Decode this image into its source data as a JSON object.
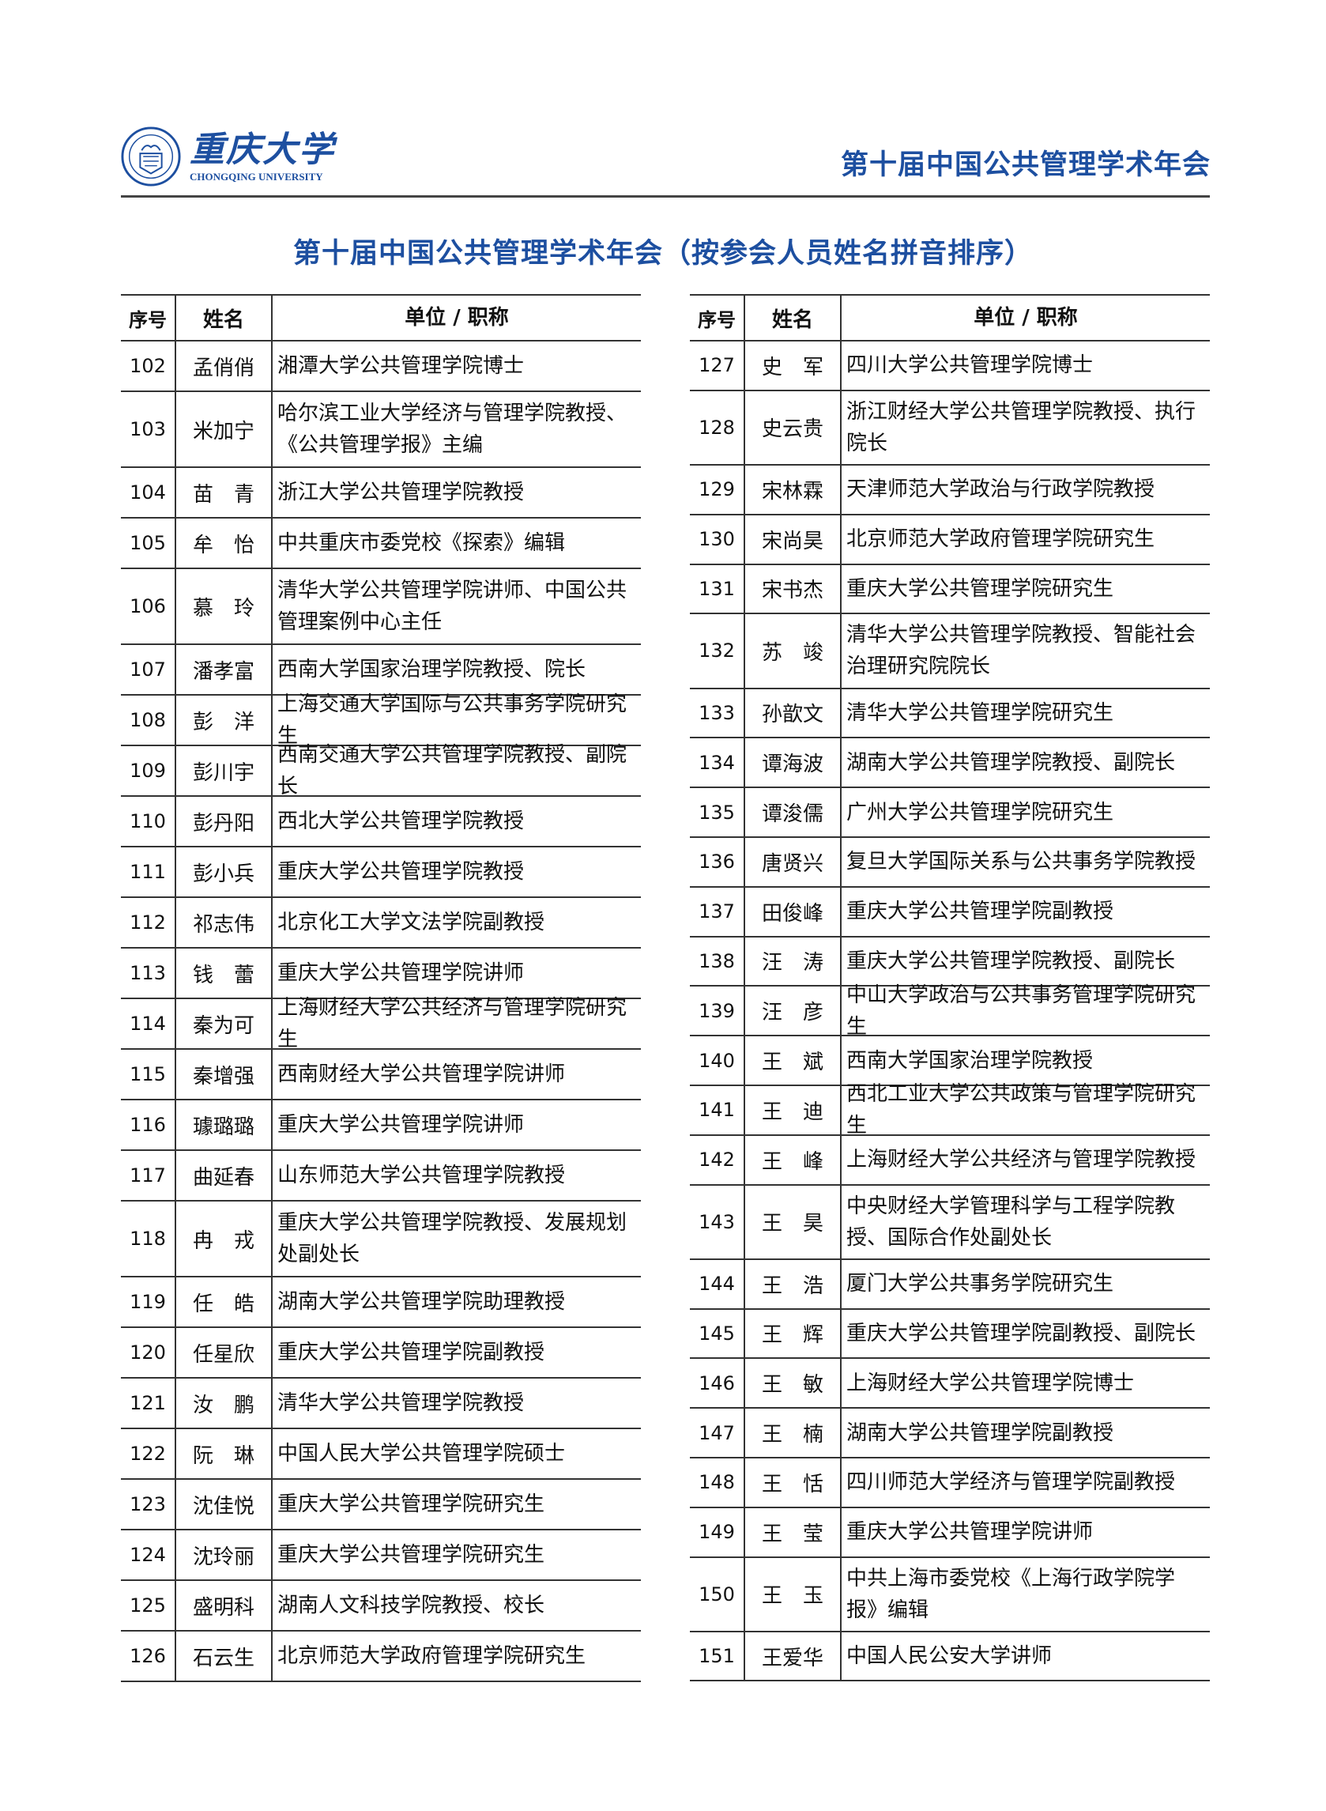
{
  "logo": {
    "cn": "重庆大学",
    "en": "CHONGQING UNIVERSITY"
  },
  "header_title": "第十届中国公共管理学术年会",
  "page_title": "第十届中国公共管理学术年会（按参会人员姓名拼音排序）",
  "columns": [
    "序号",
    "姓名",
    "单位 / 职称"
  ],
  "colors": {
    "title": "#1d4fa0",
    "rule": "#333333"
  },
  "left_rows": [
    [
      "102",
      "孟俏俏",
      "湘潭大学公共管理学院博士"
    ],
    [
      "103",
      "米加宁",
      "哈尔滨工业大学经济与管理学院教授、《公共管理学报》主编"
    ],
    [
      "104",
      "苗　青",
      "浙江大学公共管理学院教授"
    ],
    [
      "105",
      "牟　怡",
      "中共重庆市委党校《探索》编辑"
    ],
    [
      "106",
      "慕　玲",
      "清华大学公共管理学院讲师、中国公共管理案例中心主任"
    ],
    [
      "107",
      "潘孝富",
      "西南大学国家治理学院教授、院长"
    ],
    [
      "108",
      "彭　洋",
      "上海交通大学国际与公共事务学院研究生"
    ],
    [
      "109",
      "彭川宇",
      "西南交通大学公共管理学院教授、副院长"
    ],
    [
      "110",
      "彭丹阳",
      "西北大学公共管理学院教授"
    ],
    [
      "111",
      "彭小兵",
      "重庆大学公共管理学院教授"
    ],
    [
      "112",
      "祁志伟",
      "北京化工大学文法学院副教授"
    ],
    [
      "113",
      "钱　蕾",
      "重庆大学公共管理学院讲师"
    ],
    [
      "114",
      "秦为可",
      "上海财经大学公共经济与管理学院研究生"
    ],
    [
      "115",
      "秦增强",
      "西南财经大学公共管理学院讲师"
    ],
    [
      "116",
      "璩璐璐",
      "重庆大学公共管理学院讲师"
    ],
    [
      "117",
      "曲延春",
      "山东师范大学公共管理学院教授"
    ],
    [
      "118",
      "冉　戎",
      "重庆大学公共管理学院教授、发展规划处副处长"
    ],
    [
      "119",
      "任　皓",
      "湖南大学公共管理学院助理教授"
    ],
    [
      "120",
      "任星欣",
      "重庆大学公共管理学院副教授"
    ],
    [
      "121",
      "汝　鹏",
      "清华大学公共管理学院教授"
    ],
    [
      "122",
      "阮　琳",
      "中国人民大学公共管理学院硕士"
    ],
    [
      "123",
      "沈佳悦",
      "重庆大学公共管理学院研究生"
    ],
    [
      "124",
      "沈玲丽",
      "重庆大学公共管理学院研究生"
    ],
    [
      "125",
      "盛明科",
      "湖南人文科技学院教授、校长"
    ],
    [
      "126",
      "石云生",
      "北京师范大学政府管理学院研究生"
    ]
  ],
  "right_rows": [
    [
      "127",
      "史　军",
      "四川大学公共管理学院博士"
    ],
    [
      "128",
      "史云贵",
      "浙江财经大学公共管理学院教授、执行院长"
    ],
    [
      "129",
      "宋林霖",
      "天津师范大学政治与行政学院教授"
    ],
    [
      "130",
      "宋尚昊",
      "北京师范大学政府管理学院研究生"
    ],
    [
      "131",
      "宋书杰",
      "重庆大学公共管理学院研究生"
    ],
    [
      "132",
      "苏　竣",
      "清华大学公共管理学院教授、智能社会治理研究院院长"
    ],
    [
      "133",
      "孙歆文",
      "清华大学公共管理学院研究生"
    ],
    [
      "134",
      "谭海波",
      "湖南大学公共管理学院教授、副院长"
    ],
    [
      "135",
      "谭浚儒",
      "广州大学公共管理学院研究生"
    ],
    [
      "136",
      "唐贤兴",
      "复旦大学国际关系与公共事务学院教授"
    ],
    [
      "137",
      "田俊峰",
      "重庆大学公共管理学院副教授"
    ],
    [
      "138",
      "汪　涛",
      "重庆大学公共管理学院教授、副院长"
    ],
    [
      "139",
      "汪　彦",
      "中山大学政治与公共事务管理学院研究生"
    ],
    [
      "140",
      "王　斌",
      "西南大学国家治理学院教授"
    ],
    [
      "141",
      "王　迪",
      "西北工业大学公共政策与管理学院研究生"
    ],
    [
      "142",
      "王　峰",
      "上海财经大学公共经济与管理学院教授"
    ],
    [
      "143",
      "王　昊",
      "中央财经大学管理科学与工程学院教授、国际合作处副处长"
    ],
    [
      "144",
      "王　浩",
      "厦门大学公共事务学院研究生"
    ],
    [
      "145",
      "王　辉",
      "重庆大学公共管理学院副教授、副院长"
    ],
    [
      "146",
      "王　敏",
      "上海财经大学公共管理学院博士"
    ],
    [
      "147",
      "王　楠",
      "湖南大学公共管理学院副教授"
    ],
    [
      "148",
      "王　恬",
      "四川师范大学经济与管理学院副教授"
    ],
    [
      "149",
      "王　莹",
      "重庆大学公共管理学院讲师"
    ],
    [
      "150",
      "王　玉",
      "中共上海市委党校《上海行政学院学报》编辑"
    ],
    [
      "151",
      "王爱华",
      "中国人民公安大学讲师"
    ]
  ]
}
